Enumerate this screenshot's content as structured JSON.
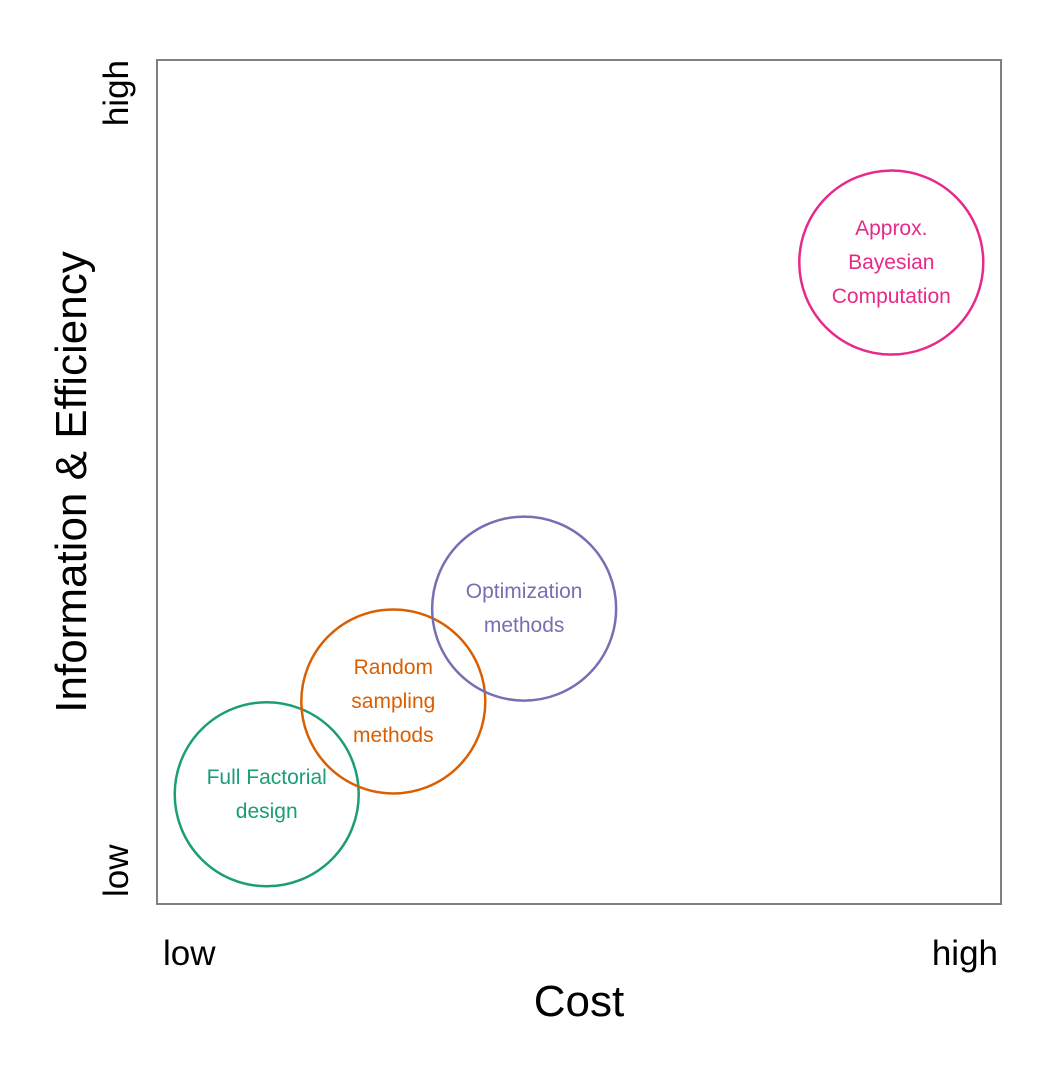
{
  "chart_data": {
    "type": "scatter",
    "title": "",
    "xlabel": "Cost",
    "ylabel": "Information & Efficiency",
    "x_ticks": [
      "low",
      "high"
    ],
    "y_ticks": [
      "low",
      "high"
    ],
    "xlim": [
      0,
      1
    ],
    "ylim": [
      0,
      1
    ],
    "grid": false,
    "series": [
      {
        "name": "Full Factorial design",
        "lines": [
          "Full Factorial",
          "design"
        ],
        "x": 0.13,
        "y": 0.13,
        "color": "#1b9e77"
      },
      {
        "name": "Random sampling methods",
        "lines": [
          "Random",
          "sampling",
          "methods"
        ],
        "x": 0.28,
        "y": 0.24,
        "color": "#d95f02"
      },
      {
        "name": "Optimization methods",
        "lines": [
          "Optimization",
          "methods"
        ],
        "x": 0.435,
        "y": 0.35,
        "color": "#7570b3"
      },
      {
        "name": "Approx. Bayesian Computation",
        "lines": [
          "Approx.",
          "Bayesian",
          "Computation"
        ],
        "x": 0.87,
        "y": 0.76,
        "color": "#e7298a"
      }
    ]
  }
}
